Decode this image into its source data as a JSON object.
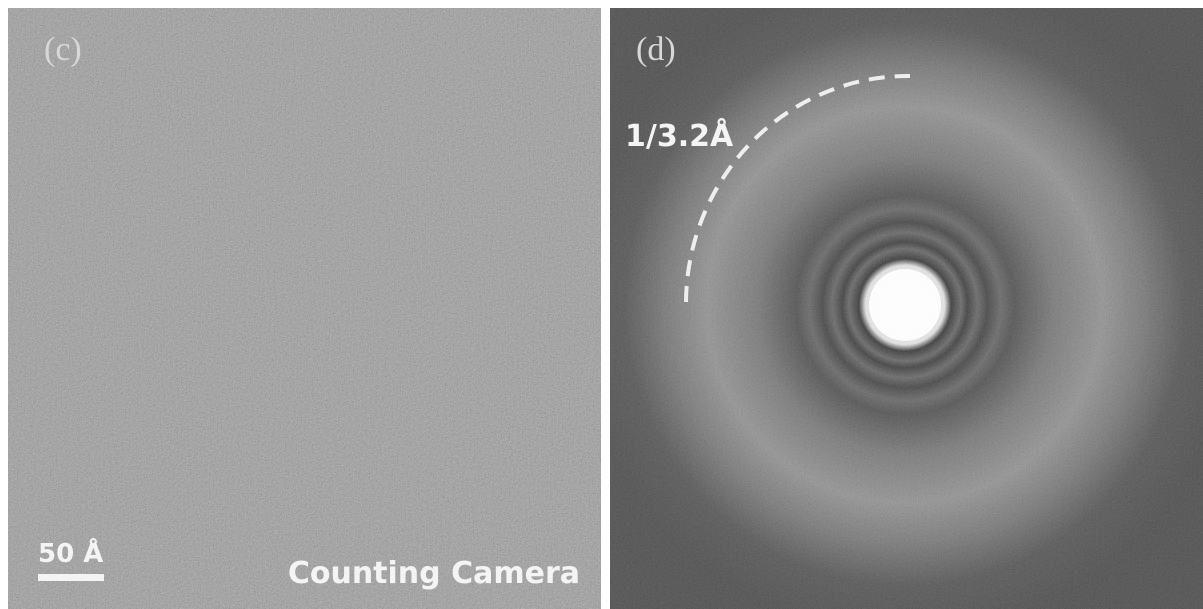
{
  "panels": [
    {
      "label": "(c)",
      "scale_bar": "50 Å",
      "caption": "Counting Camera"
    },
    {
      "label": "(d)",
      "annotation": "1/3.2Å"
    }
  ]
}
